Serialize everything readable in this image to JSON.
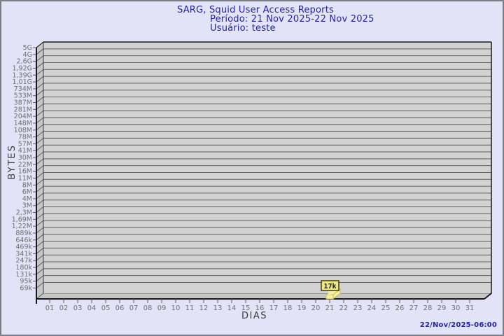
{
  "header": {
    "title": "SARG, Squid User Access Reports",
    "period": "Período: 21 Nov 2025-22 Nov 2025",
    "user": "Usuário: teste"
  },
  "footer": {
    "timestamp": "22/Nov/2025-06:00"
  },
  "chart_data": {
    "type": "bar",
    "title": "SARG, Squid User Access Reports",
    "subtitle": [
      "Período: 21 Nov 2025-22 Nov 2025",
      "Usuário: teste"
    ],
    "xlabel": "DIAS",
    "ylabel": "BYTES",
    "y_scale": "log",
    "grid": true,
    "legend": "none",
    "y_ticks": [
      "5G",
      "4G",
      "2,6G",
      "1,92G",
      "1,39G",
      "1,01G",
      "734M",
      "533M",
      "387M",
      "281M",
      "204M",
      "148M",
      "108M",
      "78M",
      "57M",
      "41M",
      "30M",
      "22M",
      "16M",
      "11M",
      "8M",
      "6M",
      "4M",
      "3M",
      "2,3M",
      "1,69M",
      "1,22M",
      "889k",
      "646k",
      "469k",
      "341k",
      "247k",
      "180k",
      "131k",
      "95k",
      "69k"
    ],
    "categories": [
      "01",
      "02",
      "03",
      "04",
      "05",
      "06",
      "07",
      "08",
      "09",
      "10",
      "11",
      "12",
      "13",
      "14",
      "15",
      "16",
      "17",
      "18",
      "19",
      "20",
      "21",
      "22",
      "23",
      "24",
      "25",
      "26",
      "27",
      "28",
      "29",
      "30",
      "31"
    ],
    "bars": [
      {
        "day": "21",
        "value_label": "17k",
        "value_bytes": 17000
      }
    ],
    "colors": {
      "background": "#e3e3f8",
      "panel": "#d3d3d3",
      "panel_side": "#c6c6c6",
      "gridline": "#5e5e5e",
      "axis": "#1a1a1a",
      "bar_fill": "#f6f0a4",
      "bar_edge": "#c9bd55",
      "label_box_fill": "#f0e68c",
      "label_box_border": "#3c3c00",
      "title_text": "#2424a4",
      "tick_text": "#6f6f6f"
    }
  }
}
